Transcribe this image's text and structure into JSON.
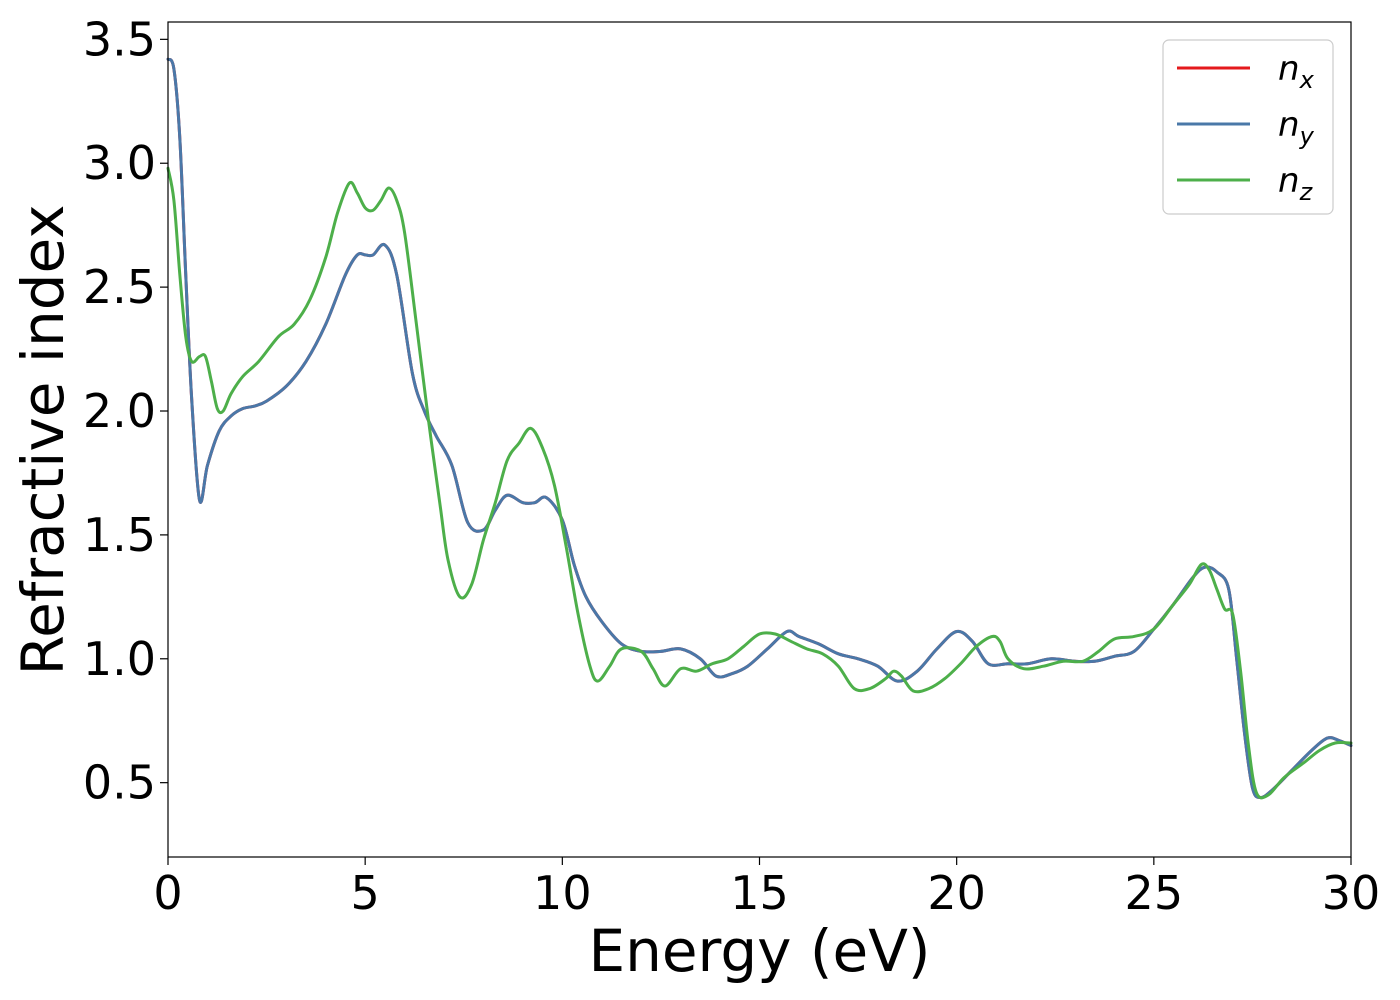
{
  "chart_data": {
    "type": "line",
    "xlabel": "Energy (eV)",
    "ylabel": "Refractive index",
    "xlim": [
      0,
      30
    ],
    "ylim": [
      0.2,
      3.57
    ],
    "xticks": [
      0,
      5,
      10,
      15,
      20,
      25,
      30
    ],
    "xtick_labels": [
      "0",
      "5",
      "10",
      "15",
      "20",
      "25",
      "30"
    ],
    "yticks": [
      0.5,
      1.0,
      1.5,
      2.0,
      2.5,
      3.0,
      3.5
    ],
    "ytick_labels": [
      "0.5",
      "1.0",
      "1.5",
      "2.0",
      "2.5",
      "3.0",
      "3.5"
    ],
    "grid": false,
    "legend_position": "top-right",
    "series": [
      {
        "name": "n_x",
        "legend_main": "n",
        "legend_sub": "x",
        "color": "#e41a1c",
        "x": [
          0,
          0.15,
          0.3,
          0.45,
          0.6,
          0.8,
          1.0,
          1.3,
          1.6,
          1.9,
          2.2,
          2.5,
          3.0,
          3.5,
          4.0,
          4.5,
          4.8,
          5.0,
          5.2,
          5.5,
          5.8,
          6.2,
          6.5,
          6.8,
          7.2,
          7.6,
          8.0,
          8.3,
          8.6,
          9.0,
          9.3,
          9.6,
          10.0,
          10.3,
          10.6,
          11.0,
          11.5,
          12.0,
          12.5,
          13.0,
          13.5,
          13.9,
          14.3,
          14.7,
          15.2,
          15.7,
          16.0,
          16.5,
          17.0,
          17.5,
          18.0,
          18.5,
          19.0,
          19.5,
          20.0,
          20.4,
          20.8,
          21.3,
          21.8,
          22.4,
          23.0,
          23.5,
          24.0,
          24.5,
          25.0,
          25.5,
          26.0,
          26.3,
          26.6,
          26.9,
          27.1,
          27.3,
          27.5,
          27.7,
          28.0,
          28.5,
          29.0,
          29.4,
          29.7,
          30.0
        ],
        "y": [
          3.42,
          3.38,
          3.1,
          2.55,
          2.05,
          1.64,
          1.78,
          1.92,
          1.98,
          2.01,
          2.02,
          2.04,
          2.1,
          2.2,
          2.35,
          2.55,
          2.63,
          2.63,
          2.63,
          2.67,
          2.55,
          2.15,
          2.0,
          1.9,
          1.78,
          1.55,
          1.52,
          1.6,
          1.66,
          1.63,
          1.63,
          1.65,
          1.56,
          1.38,
          1.25,
          1.15,
          1.06,
          1.03,
          1.03,
          1.04,
          1.0,
          0.93,
          0.94,
          0.97,
          1.04,
          1.11,
          1.09,
          1.06,
          1.02,
          1.0,
          0.97,
          0.91,
          0.95,
          1.04,
          1.11,
          1.07,
          0.98,
          0.98,
          0.98,
          1.0,
          0.99,
          0.99,
          1.01,
          1.03,
          1.12,
          1.22,
          1.33,
          1.37,
          1.35,
          1.28,
          1.0,
          0.7,
          0.48,
          0.44,
          0.47,
          0.55,
          0.63,
          0.68,
          0.67,
          0.65
        ]
      },
      {
        "name": "n_y",
        "legend_main": "n",
        "legend_sub": "y",
        "color": "#4a78a8",
        "x": [
          0,
          0.15,
          0.3,
          0.45,
          0.6,
          0.8,
          1.0,
          1.3,
          1.6,
          1.9,
          2.2,
          2.5,
          3.0,
          3.5,
          4.0,
          4.5,
          4.8,
          5.0,
          5.2,
          5.5,
          5.8,
          6.2,
          6.5,
          6.8,
          7.2,
          7.6,
          8.0,
          8.3,
          8.6,
          9.0,
          9.3,
          9.6,
          10.0,
          10.3,
          10.6,
          11.0,
          11.5,
          12.0,
          12.5,
          13.0,
          13.5,
          13.9,
          14.3,
          14.7,
          15.2,
          15.7,
          16.0,
          16.5,
          17.0,
          17.5,
          18.0,
          18.5,
          19.0,
          19.5,
          20.0,
          20.4,
          20.8,
          21.3,
          21.8,
          22.4,
          23.0,
          23.5,
          24.0,
          24.5,
          25.0,
          25.5,
          26.0,
          26.3,
          26.6,
          26.9,
          27.1,
          27.3,
          27.5,
          27.7,
          28.0,
          28.5,
          29.0,
          29.4,
          29.7,
          30.0
        ],
        "y": [
          3.42,
          3.38,
          3.1,
          2.55,
          2.05,
          1.64,
          1.78,
          1.92,
          1.98,
          2.01,
          2.02,
          2.04,
          2.1,
          2.2,
          2.35,
          2.55,
          2.63,
          2.63,
          2.63,
          2.67,
          2.55,
          2.15,
          2.0,
          1.9,
          1.78,
          1.55,
          1.52,
          1.6,
          1.66,
          1.63,
          1.63,
          1.65,
          1.56,
          1.38,
          1.25,
          1.15,
          1.06,
          1.03,
          1.03,
          1.04,
          1.0,
          0.93,
          0.94,
          0.97,
          1.04,
          1.11,
          1.09,
          1.06,
          1.02,
          1.0,
          0.97,
          0.91,
          0.95,
          1.04,
          1.11,
          1.07,
          0.98,
          0.98,
          0.98,
          1.0,
          0.99,
          0.99,
          1.01,
          1.03,
          1.12,
          1.22,
          1.33,
          1.37,
          1.35,
          1.28,
          1.0,
          0.7,
          0.48,
          0.44,
          0.47,
          0.55,
          0.63,
          0.68,
          0.67,
          0.65
        ]
      },
      {
        "name": "n_z",
        "legend_main": "n",
        "legend_sub": "z",
        "color": "#4daf4a",
        "x": [
          0,
          0.15,
          0.3,
          0.45,
          0.6,
          0.8,
          0.95,
          1.1,
          1.25,
          1.4,
          1.6,
          1.9,
          2.3,
          2.8,
          3.2,
          3.6,
          4.0,
          4.3,
          4.6,
          4.8,
          5.0,
          5.2,
          5.4,
          5.6,
          5.8,
          6.0,
          6.3,
          6.6,
          6.9,
          7.1,
          7.4,
          7.7,
          8.0,
          8.3,
          8.6,
          8.9,
          9.2,
          9.5,
          9.8,
          10.1,
          10.4,
          10.7,
          10.9,
          11.2,
          11.5,
          12.0,
          12.3,
          12.6,
          13.0,
          13.4,
          13.8,
          14.2,
          14.6,
          15.0,
          15.4,
          15.8,
          16.2,
          16.6,
          17.0,
          17.4,
          17.8,
          18.2,
          18.4,
          18.6,
          18.9,
          19.3,
          19.7,
          20.1,
          20.5,
          20.9,
          21.1,
          21.3,
          21.7,
          22.2,
          22.7,
          23.2,
          23.6,
          24.0,
          24.5,
          25.0,
          25.5,
          25.9,
          26.2,
          26.4,
          26.6,
          26.8,
          27.0,
          27.2,
          27.4,
          27.6,
          27.9,
          28.3,
          28.8,
          29.2,
          29.6,
          30.0
        ],
        "y": [
          2.98,
          2.85,
          2.55,
          2.3,
          2.2,
          2.22,
          2.22,
          2.12,
          2.01,
          2.0,
          2.07,
          2.14,
          2.2,
          2.3,
          2.35,
          2.45,
          2.62,
          2.8,
          2.92,
          2.88,
          2.82,
          2.81,
          2.85,
          2.9,
          2.85,
          2.72,
          2.35,
          1.97,
          1.62,
          1.4,
          1.25,
          1.3,
          1.48,
          1.63,
          1.8,
          1.87,
          1.93,
          1.85,
          1.7,
          1.45,
          1.18,
          0.97,
          0.91,
          0.97,
          1.04,
          1.03,
          0.96,
          0.89,
          0.96,
          0.95,
          0.98,
          1.0,
          1.05,
          1.1,
          1.1,
          1.07,
          1.04,
          1.02,
          0.97,
          0.88,
          0.88,
          0.92,
          0.95,
          0.93,
          0.87,
          0.88,
          0.92,
          0.98,
          1.05,
          1.09,
          1.07,
          1.0,
          0.96,
          0.97,
          0.99,
          0.99,
          1.03,
          1.08,
          1.09,
          1.12,
          1.22,
          1.3,
          1.38,
          1.36,
          1.28,
          1.2,
          1.18,
          0.95,
          0.65,
          0.46,
          0.45,
          0.52,
          0.58,
          0.63,
          0.66,
          0.66
        ]
      }
    ]
  }
}
